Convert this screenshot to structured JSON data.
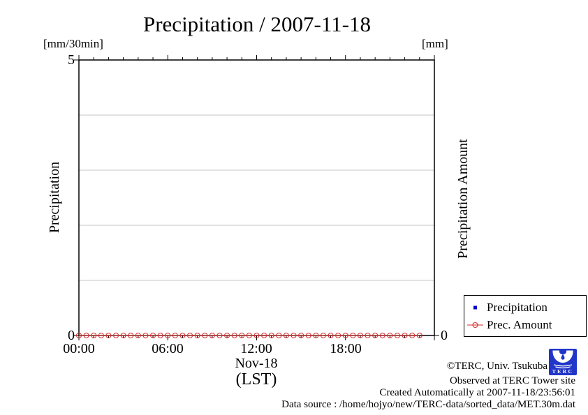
{
  "title": "Precipitation / 2007-11-18",
  "left_axis": {
    "unit": "[mm/30min]",
    "label": "Precipitation",
    "top_tick": "5",
    "bottom_tick": "0"
  },
  "right_axis": {
    "unit": "[mm]",
    "label": "Precipitation Amount",
    "bottom_tick": "0"
  },
  "x_axis": {
    "tick_labels": [
      "00:00",
      "06:00",
      "12:00",
      "18:00"
    ],
    "date_label": "Nov-18",
    "timezone_label": "(LST)"
  },
  "legend": {
    "items": [
      {
        "label": "Precipitation",
        "marker": "blue-filled-square"
      },
      {
        "label": "Prec. Amount",
        "marker": "red-open-circle-with-line"
      }
    ]
  },
  "footer": {
    "copyright": "©TERC, Univ. Tsukuba",
    "observed": "Observed at TERC Tower site",
    "created": "Created Automatically at 2007-11-18/23:56:01",
    "data_source": "Data source : /home/hojyo/new/TERC-data/sorted_data/MET.30m.dat",
    "logo_text": "TERC"
  },
  "colors": {
    "red": "#d42a2a",
    "blue": "#0000cc",
    "logo_blue": "#2136c9",
    "grid": "#c4c4c4",
    "axis": "#000000"
  },
  "chart_data": {
    "type": "scatter",
    "title": "Precipitation / 2007-11-18",
    "xlabel": "Nov-18 (LST)",
    "x_range_hours": [
      0,
      24
    ],
    "x_major_tick_hours": [
      0,
      6,
      12,
      18,
      24
    ],
    "x_minor_tick_interval_hours": 1,
    "x_tick_labels": [
      "00:00",
      "06:00",
      "12:00",
      "18:00"
    ],
    "ylabel_left": "Precipitation [mm/30min]",
    "ylabel_right": "Precipitation Amount [mm]",
    "ylim_left": [
      0,
      5
    ],
    "y_labeled_ticks_left": [
      0,
      5
    ],
    "y_labeled_ticks_right": [
      0
    ],
    "gridline_values": [
      1,
      2,
      3,
      4
    ],
    "grid": true,
    "legend_position": "outside-bottom-right",
    "series": [
      {
        "name": "Precipitation",
        "marker": "filled-square",
        "color_key": "blue",
        "points_visible": false,
        "x_hours": [],
        "values": []
      },
      {
        "name": "Prec. Amount",
        "marker": "open-circle",
        "color_key": "red",
        "line": true,
        "x_hours": [
          0,
          0.5,
          1,
          1.5,
          2,
          2.5,
          3,
          3.5,
          4,
          4.5,
          5,
          5.5,
          6,
          6.5,
          7,
          7.5,
          8,
          8.5,
          9,
          9.5,
          10,
          10.5,
          11,
          11.5,
          12,
          12.5,
          13,
          13.5,
          14,
          14.5,
          15,
          15.5,
          16,
          16.5,
          17,
          17.5,
          18,
          18.5,
          19,
          19.5,
          20,
          20.5,
          21,
          21.5,
          22,
          22.5,
          23
        ],
        "values": [
          0,
          0,
          0,
          0,
          0,
          0,
          0,
          0,
          0,
          0,
          0,
          0,
          0,
          0,
          0,
          0,
          0,
          0,
          0,
          0,
          0,
          0,
          0,
          0,
          0,
          0,
          0,
          0,
          0,
          0,
          0,
          0,
          0,
          0,
          0,
          0,
          0,
          0,
          0,
          0,
          0,
          0,
          0,
          0,
          0,
          0,
          0
        ]
      }
    ]
  }
}
